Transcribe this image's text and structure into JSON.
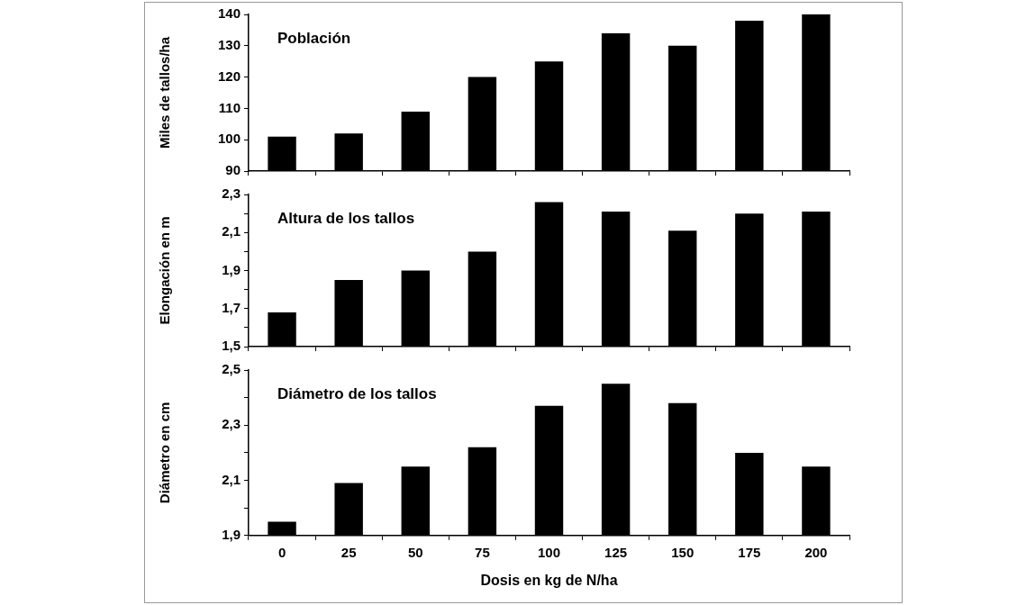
{
  "chart_data": [
    {
      "type": "bar",
      "title": "Población",
      "ylabel": "Miles de tallos/ha",
      "categories": [
        "0",
        "25",
        "50",
        "75",
        "100",
        "125",
        "150",
        "175",
        "200"
      ],
      "series": [
        {
          "color": "#000000",
          "values": [
            101,
            102,
            109,
            120,
            125,
            134,
            130,
            138,
            140
          ]
        }
      ],
      "ylim": [
        90,
        140
      ],
      "yticks": [
        90,
        100,
        110,
        120,
        130,
        140
      ],
      "grid": false,
      "legend": false,
      "tick_labels": "y"
    },
    {
      "type": "bar",
      "title": "Altura de los tallos",
      "ylabel": "Elongación en m",
      "categories": [
        "0",
        "25",
        "50",
        "75",
        "100",
        "125",
        "150",
        "175",
        "200"
      ],
      "series": [
        {
          "color": "#000000",
          "values": [
            1.68,
            1.85,
            1.9,
            2.0,
            2.26,
            2.21,
            2.11,
            2.2,
            2.21
          ]
        }
      ],
      "ylim": [
        1.5,
        2.3
      ],
      "yticks": [
        {
          "value": 1.5,
          "label": "1,5"
        },
        {
          "value": 1.6,
          "label": null
        },
        {
          "value": 1.7,
          "label": "1,7"
        },
        {
          "value": 1.8,
          "label": null
        },
        {
          "value": 1.9,
          "label": "1,9"
        },
        {
          "value": 2.0,
          "label": null
        },
        {
          "value": 2.1,
          "label": "2,1"
        },
        {
          "value": 2.2,
          "label": null
        },
        {
          "value": 2.3,
          "label": "2,3"
        }
      ],
      "grid": false,
      "legend": false,
      "tick_labels": "y"
    },
    {
      "type": "bar",
      "title": "Diámetro de los tallos",
      "ylabel": "Diámetro en cm",
      "xlabel": "Dosis en kg de N/ha",
      "categories": [
        "0",
        "25",
        "50",
        "75",
        "100",
        "125",
        "150",
        "175",
        "200"
      ],
      "series": [
        {
          "color": "#000000",
          "values": [
            1.95,
            2.09,
            2.15,
            2.22,
            2.37,
            2.45,
            2.38,
            2.2,
            2.15
          ]
        }
      ],
      "ylim": [
        1.9,
        2.5
      ],
      "yticks": [
        {
          "value": 1.9,
          "label": "1,9"
        },
        {
          "value": 2.0,
          "label": null
        },
        {
          "value": 2.1,
          "label": "2,1"
        },
        {
          "value": 2.2,
          "label": null
        },
        {
          "value": 2.3,
          "label": "2,3"
        },
        {
          "value": 2.4,
          "label": null
        },
        {
          "value": 2.5,
          "label": "2,5"
        }
      ],
      "grid": false,
      "legend": false
    }
  ]
}
